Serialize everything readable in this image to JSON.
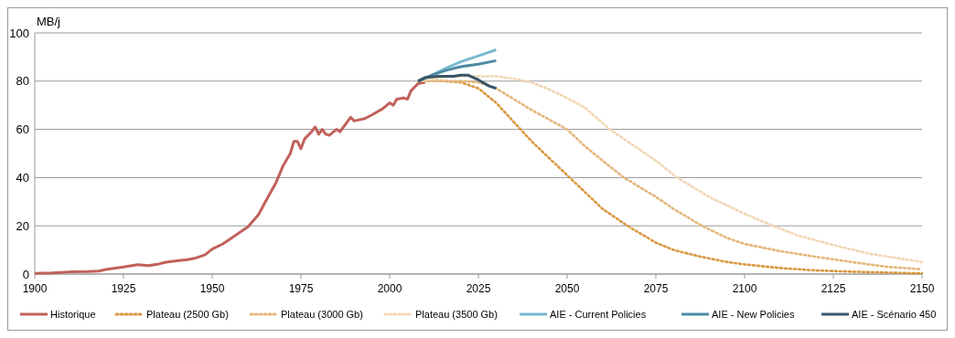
{
  "chart_data": {
    "type": "line",
    "ylabel": "MB/j",
    "xlim": [
      1900,
      2150
    ],
    "xticks": [
      1900,
      1925,
      1950,
      1975,
      2000,
      2025,
      2050,
      2075,
      2100,
      2125,
      2150
    ],
    "ylim": [
      0,
      100
    ],
    "yticks": [
      0,
      20,
      40,
      60,
      80,
      100
    ],
    "grid": "y",
    "legend": "bottom",
    "series": [
      {
        "name": "Historique",
        "color": "#c0615a",
        "line_style": "solid",
        "x": [
          1900,
          1905,
          1910,
          1915,
          1918,
          1920,
          1925,
          1929,
          1932,
          1935,
          1937,
          1940,
          1943,
          1945,
          1948,
          1950,
          1953,
          1955,
          1958,
          1960,
          1963,
          1965,
          1968,
          1970,
          1972,
          1973,
          1974,
          1975,
          1976,
          1978,
          1979,
          1980,
          1981,
          1982,
          1983,
          1985,
          1986,
          1988,
          1989,
          1990,
          1993,
          1995,
          1998,
          2000,
          2001,
          2002,
          2004,
          2005,
          2006,
          2008,
          2010
        ],
        "values": [
          0.3,
          0.5,
          0.9,
          1,
          1.2,
          1.9,
          2.9,
          3.9,
          3.5,
          4.2,
          4.9,
          5.5,
          6,
          6.5,
          8,
          10.4,
          12.5,
          14.5,
          17.5,
          19.5,
          24.5,
          30,
          38,
          45,
          50,
          55,
          55,
          52,
          56,
          59,
          61,
          58,
          60,
          58,
          57.5,
          60,
          59,
          63,
          65,
          63.5,
          64.5,
          66,
          68.5,
          71,
          70,
          72.5,
          73,
          72.5,
          76,
          79,
          79.5
        ]
      },
      {
        "name": "Plateau (2500 Gb)",
        "color": "#d9973f",
        "line_style": "dotted",
        "x": [
          2008,
          2015,
          2020,
          2025,
          2030,
          2035,
          2040,
          2045,
          2050,
          2055,
          2060,
          2067,
          2075,
          2080,
          2087,
          2095,
          2100,
          2110,
          2120,
          2130,
          2140,
          2150
        ],
        "values": [
          80,
          80,
          79.5,
          77,
          71,
          63,
          55,
          48,
          41,
          34,
          27,
          20,
          13,
          10,
          7.4,
          5,
          4,
          2.5,
          1.5,
          1,
          0.6,
          0.3
        ]
      },
      {
        "name": "Plateau (3000 Gb)",
        "color": "#e5b57a",
        "line_style": "dotted",
        "x": [
          2008,
          2015,
          2020,
          2025,
          2030,
          2035,
          2040,
          2045,
          2050,
          2055,
          2060,
          2066,
          2075,
          2080,
          2088,
          2095,
          2100,
          2110,
          2119,
          2130,
          2140,
          2150
        ],
        "values": [
          80,
          80,
          80,
          79.5,
          77,
          72.5,
          68,
          64,
          60,
          53,
          47,
          40,
          32,
          27,
          20,
          15,
          12.5,
          9.5,
          7.4,
          5,
          3,
          2
        ]
      },
      {
        "name": "Plateau (3500 Gb)",
        "color": "#f1d6b3",
        "line_style": "dotted",
        "x": [
          2008,
          2015,
          2020,
          2025,
          2030,
          2035,
          2040,
          2045,
          2050,
          2055,
          2062,
          2070,
          2075,
          2081,
          2090,
          2100,
          2108,
          2115,
          2125,
          2135,
          2150
        ],
        "values": [
          80,
          81.5,
          82,
          82,
          82,
          81,
          79.5,
          76.5,
          73,
          69,
          60,
          52,
          47,
          40,
          32,
          25,
          20,
          16,
          12,
          8.5,
          5
        ]
      },
      {
        "name": "AIE - Current Policies",
        "color": "#7ab8d1",
        "line_style": "solid",
        "x": [
          2008,
          2012,
          2016,
          2020,
          2025,
          2030
        ],
        "values": [
          80,
          82.5,
          85.5,
          88,
          90.5,
          93
        ]
      },
      {
        "name": "AIE - New Policies",
        "color": "#4f8aa3",
        "line_style": "solid",
        "x": [
          2008,
          2012,
          2016,
          2020,
          2025,
          2030
        ],
        "values": [
          80,
          82.5,
          84.5,
          86,
          87,
          88.5
        ]
      },
      {
        "name": "AIE - Scénario 450",
        "color": "#37566a",
        "line_style": "solid",
        "x": [
          2008,
          2010,
          2014,
          2018,
          2020,
          2022,
          2025,
          2028,
          2030
        ],
        "values": [
          80,
          81.5,
          82,
          82,
          82.5,
          82.5,
          80.5,
          78,
          77
        ]
      }
    ]
  }
}
